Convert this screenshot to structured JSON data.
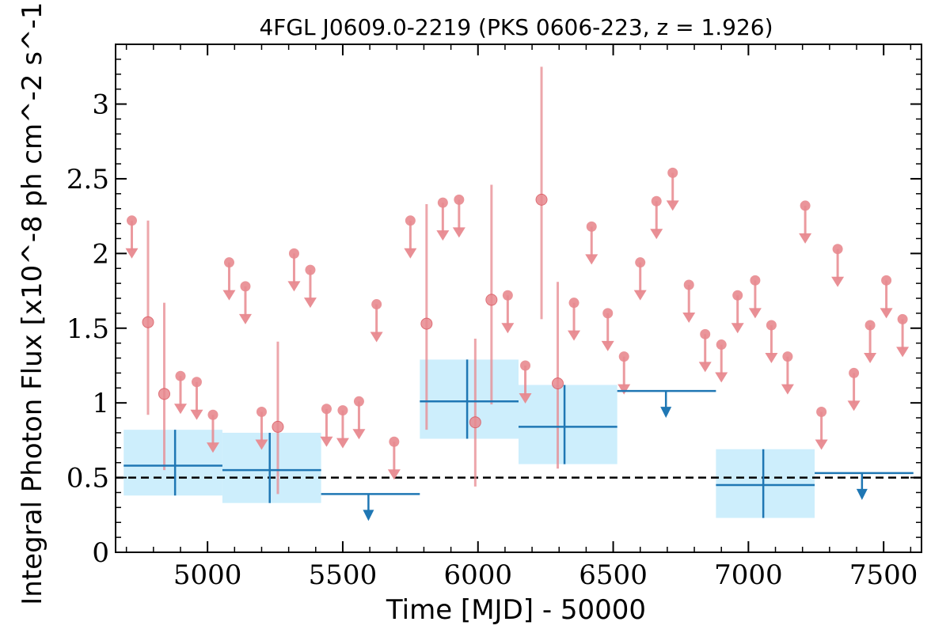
{
  "chart_data": {
    "type": "scatter",
    "title": "4FGL J0609.0-2219 (PKS 0606-223, z = 1.926)",
    "xlabel": "Time [MJD] - 50000",
    "ylabel": "Integral Photon Flux [x10^-8 ph cm^-2 s^-1]",
    "xlim": [
      4660,
      7640
    ],
    "ylim": [
      0,
      3.4
    ],
    "x_ticks": [
      5000,
      5500,
      6000,
      6500,
      7000,
      7500
    ],
    "x_tick_labels": [
      "5000",
      "5500",
      "6000",
      "6500",
      "7000",
      "7500"
    ],
    "y_ticks": [
      0,
      0.5,
      1,
      1.5,
      2,
      2.5,
      3
    ],
    "y_tick_labels": [
      "0",
      "0.5",
      "1",
      "1.5",
      "2",
      "2.5",
      "3"
    ],
    "grid": false,
    "reference_line": {
      "y": 0.5,
      "style": "dashed",
      "color": "#000000"
    },
    "colors": {
      "short_bin": "#e8898f",
      "long_bin": "#1f77b4",
      "long_bin_band": "#cdeefc"
    },
    "series": [
      {
        "bin": "short",
        "detections": [
          {
            "x": 4780,
            "y": 1.54,
            "ylo": 0.92,
            "yhi": 2.22
          },
          {
            "x": 4840,
            "y": 1.06,
            "ylo": 0.55,
            "yhi": 1.67
          },
          {
            "x": 5260,
            "y": 0.84,
            "ylo": 0.39,
            "yhi": 1.41
          },
          {
            "x": 5810,
            "y": 1.53,
            "ylo": 0.82,
            "yhi": 2.33
          },
          {
            "x": 5990,
            "y": 0.87,
            "ylo": 0.44,
            "yhi": 1.43
          },
          {
            "x": 6050,
            "y": 1.69,
            "ylo": 0.99,
            "yhi": 2.46
          },
          {
            "x": 6235,
            "y": 2.36,
            "ylo": 1.56,
            "yhi": 3.25
          },
          {
            "x": 6295,
            "y": 1.13,
            "ylo": 0.56,
            "yhi": 1.81
          }
        ],
        "upper_limits": [
          {
            "x": 4720,
            "y": 2.22
          },
          {
            "x": 4900,
            "y": 1.18
          },
          {
            "x": 4960,
            "y": 1.14
          },
          {
            "x": 5020,
            "y": 0.92
          },
          {
            "x": 5080,
            "y": 1.94
          },
          {
            "x": 5140,
            "y": 1.78
          },
          {
            "x": 5200,
            "y": 0.94
          },
          {
            "x": 5320,
            "y": 2.0
          },
          {
            "x": 5380,
            "y": 1.89
          },
          {
            "x": 5440,
            "y": 0.96
          },
          {
            "x": 5500,
            "y": 0.95
          },
          {
            "x": 5560,
            "y": 1.01
          },
          {
            "x": 5625,
            "y": 1.66
          },
          {
            "x": 5690,
            "y": 0.74
          },
          {
            "x": 5750,
            "y": 2.22
          },
          {
            "x": 5870,
            "y": 2.34
          },
          {
            "x": 5930,
            "y": 2.36
          },
          {
            "x": 6110,
            "y": 1.72
          },
          {
            "x": 6175,
            "y": 1.25
          },
          {
            "x": 6355,
            "y": 1.67
          },
          {
            "x": 6420,
            "y": 2.18
          },
          {
            "x": 6480,
            "y": 1.6
          },
          {
            "x": 6540,
            "y": 1.31
          },
          {
            "x": 6600,
            "y": 1.94
          },
          {
            "x": 6660,
            "y": 2.35
          },
          {
            "x": 6720,
            "y": 2.54
          },
          {
            "x": 6780,
            "y": 1.79
          },
          {
            "x": 6840,
            "y": 1.46
          },
          {
            "x": 6900,
            "y": 1.39
          },
          {
            "x": 6960,
            "y": 1.72
          },
          {
            "x": 7025,
            "y": 1.82
          },
          {
            "x": 7085,
            "y": 1.52
          },
          {
            "x": 7145,
            "y": 1.31
          },
          {
            "x": 7210,
            "y": 2.32
          },
          {
            "x": 7270,
            "y": 0.94
          },
          {
            "x": 7330,
            "y": 2.03
          },
          {
            "x": 7390,
            "y": 1.2
          },
          {
            "x": 7450,
            "y": 1.52
          },
          {
            "x": 7510,
            "y": 1.82
          },
          {
            "x": 7570,
            "y": 1.56
          }
        ]
      },
      {
        "bin": "long",
        "detections": [
          {
            "x": 4880,
            "x0": 4690,
            "x1": 5055,
            "y": 0.58,
            "ylo": 0.38,
            "yhi": 0.82
          },
          {
            "x": 5230,
            "x0": 5055,
            "x1": 5420,
            "y": 0.55,
            "ylo": 0.33,
            "yhi": 0.8
          },
          {
            "x": 5960,
            "x0": 5785,
            "x1": 6150,
            "y": 1.01,
            "ylo": 0.76,
            "yhi": 1.29
          },
          {
            "x": 6320,
            "x0": 6150,
            "x1": 6515,
            "y": 0.84,
            "ylo": 0.59,
            "yhi": 1.12
          },
          {
            "x": 7055,
            "x0": 6880,
            "x1": 7245,
            "y": 0.45,
            "ylo": 0.23,
            "yhi": 0.69
          }
        ],
        "upper_limits": [
          {
            "x": 5595,
            "x0": 5420,
            "x1": 5785,
            "y": 0.39
          },
          {
            "x": 6695,
            "x0": 6515,
            "x1": 6880,
            "y": 1.08
          },
          {
            "x": 7420,
            "x0": 7245,
            "x1": 7610,
            "y": 0.53
          }
        ]
      }
    ]
  }
}
